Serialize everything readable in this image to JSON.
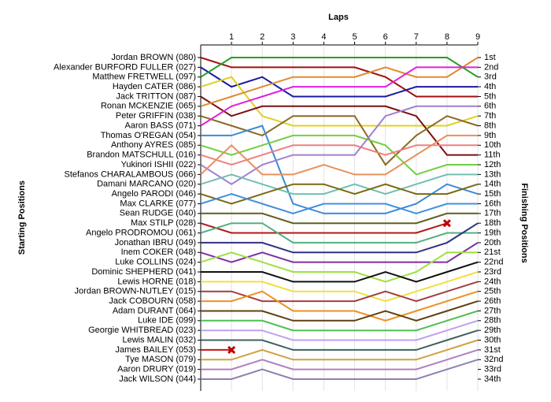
{
  "chart_data": {
    "type": "line",
    "x_label": "Laps",
    "y_label": "Starting Positions",
    "y2_label": "Finishing Positions",
    "x": [
      0,
      1,
      2,
      3,
      4,
      5,
      6,
      7,
      8,
      9
    ],
    "xlim": [
      0,
      9
    ],
    "xticks": [
      1,
      2,
      3,
      4,
      5,
      6,
      7,
      8,
      9
    ],
    "ylim": [
      1,
      34
    ],
    "y2lim": [
      1,
      34
    ],
    "y2ticks": [
      {
        "value": 1,
        "label": "1st"
      },
      {
        "value": 2,
        "label": "2nd"
      },
      {
        "value": 3,
        "label": "3rd"
      },
      {
        "value": 4,
        "label": "4th"
      },
      {
        "value": 5,
        "label": "5th"
      },
      {
        "value": 6,
        "label": "6th"
      },
      {
        "value": 7,
        "label": "7th"
      },
      {
        "value": 8,
        "label": "8th"
      },
      {
        "value": 9,
        "label": "9th"
      },
      {
        "value": 10,
        "label": "10th"
      },
      {
        "value": 11,
        "label": "11th"
      },
      {
        "value": 12,
        "label": "12th"
      },
      {
        "value": 13,
        "label": "13th"
      },
      {
        "value": 14,
        "label": "14th"
      },
      {
        "value": 15,
        "label": "15th"
      },
      {
        "value": 16,
        "label": "16th"
      },
      {
        "value": 17,
        "label": "17th"
      },
      {
        "value": 18,
        "label": "18th"
      },
      {
        "value": 19,
        "label": "19th"
      },
      {
        "value": 20,
        "label": "20th"
      },
      {
        "value": 21,
        "label": "21st"
      },
      {
        "value": 22,
        "label": "22nd"
      },
      {
        "value": 23,
        "label": "23rd"
      },
      {
        "value": 24,
        "label": "24th"
      },
      {
        "value": 25,
        "label": "25th"
      },
      {
        "value": 26,
        "label": "26th"
      },
      {
        "value": 27,
        "label": "27th"
      },
      {
        "value": 28,
        "label": "28th"
      },
      {
        "value": 29,
        "label": "29th"
      },
      {
        "value": 30,
        "label": "30th"
      },
      {
        "value": 31,
        "label": "31st"
      },
      {
        "value": 32,
        "label": "32nd"
      },
      {
        "value": 33,
        "label": "33rd"
      },
      {
        "value": 34,
        "label": "34th"
      }
    ],
    "grid": true,
    "series": [
      {
        "name": "Jordan BROWN (080)",
        "color": "#a01010",
        "values": [
          1,
          2,
          2,
          2,
          2,
          2,
          3,
          5,
          5,
          5
        ]
      },
      {
        "name": "Alexander BURFORD FULLER (027)",
        "color": "#1a1aa0",
        "values": [
          2,
          4,
          3,
          5,
          5,
          5,
          5,
          4,
          4,
          4
        ]
      },
      {
        "name": "Matthew FRETWELL (097)",
        "color": "#22a022",
        "values": [
          3,
          1,
          1,
          1,
          1,
          1,
          1,
          1,
          1,
          3
        ]
      },
      {
        "name": "Hayden CATER (086)",
        "color": "#e0d020",
        "values": [
          4,
          3,
          7,
          8,
          8,
          8,
          8,
          8,
          8,
          7
        ]
      },
      {
        "name": "Jack TRITTON (087)",
        "color": "#7a1010",
        "values": [
          5,
          7,
          6,
          6,
          6,
          6,
          6,
          7,
          11,
          11
        ]
      },
      {
        "name": "Ronan MCKENZIE (065)",
        "color": "#e08a30",
        "values": [
          6,
          5,
          4,
          3,
          3,
          3,
          2,
          3,
          3,
          1
        ]
      },
      {
        "name": "Peter GRIFFIN (038)",
        "color": "#8a6a20",
        "values": [
          7,
          8,
          9,
          7,
          7,
          7,
          12,
          9,
          7,
          8
        ]
      },
      {
        "name": "Aaron BASS (071)",
        "color": "#e020e0",
        "values": [
          8,
          6,
          5,
          4,
          4,
          4,
          4,
          2,
          2,
          2
        ]
      },
      {
        "name": "Thomas O'REGAN (054)",
        "color": "#3a8ad8",
        "values": [
          9,
          9,
          8,
          16,
          17,
          17,
          17,
          16,
          14,
          15
        ]
      },
      {
        "name": "Anthony AYRES (085)",
        "color": "#70d040",
        "values": [
          10,
          11,
          10,
          9,
          9,
          9,
          10,
          13,
          12,
          12
        ]
      },
      {
        "name": "Brandon MATSCHULL (016)",
        "color": "#f08080",
        "values": [
          11,
          12,
          11,
          10,
          10,
          10,
          11,
          10,
          10,
          10
        ]
      },
      {
        "name": "Yukinori ISHII (022)",
        "color": "#a080d0",
        "values": [
          12,
          14,
          12,
          11,
          11,
          11,
          7,
          6,
          6,
          6
        ]
      },
      {
        "name": "Stefanos CHARALAMBOUS (066)",
        "color": "#e89060",
        "values": [
          13,
          10,
          13,
          13,
          12,
          13,
          13,
          11,
          9,
          9
        ]
      },
      {
        "name": "Damani MARCANO (020)",
        "color": "#70c0b0",
        "values": [
          14,
          13,
          14,
          15,
          15,
          14,
          15,
          14,
          13,
          13
        ]
      },
      {
        "name": "Angelo PARODI (046)",
        "color": "#7a6a10",
        "values": [
          15,
          16,
          15,
          14,
          14,
          15,
          14,
          15,
          15,
          14
        ]
      },
      {
        "name": "Max CLARKE (077)",
        "color": "#4090e0",
        "values": [
          16,
          15,
          16,
          17,
          16,
          16,
          16,
          17,
          16,
          16
        ]
      },
      {
        "name": "Sean RUDGE (040)",
        "color": "#606020",
        "values": [
          17,
          17,
          17,
          18,
          18,
          18,
          18,
          18,
          17,
          17
        ]
      },
      {
        "name": "Max STILP (028)",
        "color": "#b01818",
        "retired": true,
        "values": [
          18,
          19,
          19,
          19,
          19,
          19,
          19,
          19,
          18,
          null
        ]
      },
      {
        "name": "Angelo PRODROMOU (061)",
        "color": "#50b080",
        "values": [
          19,
          18,
          18,
          20,
          20,
          20,
          20,
          20,
          19,
          19
        ]
      },
      {
        "name": "Jonathan IBRU (049)",
        "color": "#303080",
        "values": [
          20,
          20,
          20,
          21,
          21,
          21,
          21,
          21,
          20,
          18
        ]
      },
      {
        "name": "Inem COKER (048)",
        "color": "#8030a0",
        "values": [
          21,
          22,
          21,
          22,
          22,
          22,
          22,
          22,
          22,
          20
        ]
      },
      {
        "name": "Luke COLLINS (024)",
        "color": "#a0e040",
        "values": [
          22,
          21,
          22,
          23,
          23,
          23,
          24,
          23,
          21,
          21
        ]
      },
      {
        "name": "Dominic SHEPHERD (041)",
        "color": "#101010",
        "values": [
          23,
          23,
          23,
          24,
          24,
          24,
          23,
          24,
          23,
          22
        ]
      },
      {
        "name": "Lewis HORNE (018)",
        "color": "#f0e040",
        "values": [
          24,
          24,
          24,
          25,
          25,
          25,
          26,
          25,
          24,
          23
        ]
      },
      {
        "name": "Jordan BROWN-NUTLEY (015)",
        "color": "#a04040",
        "values": [
          25,
          25,
          26,
          26,
          26,
          26,
          25,
          26,
          25,
          24
        ]
      },
      {
        "name": "Jack COBOURN (058)",
        "color": "#f09020",
        "values": [
          26,
          26,
          25,
          27,
          27,
          27,
          28,
          27,
          26,
          25
        ]
      },
      {
        "name": "Adam DURANT (064)",
        "color": "#604010",
        "values": [
          27,
          27,
          27,
          28,
          28,
          28,
          27,
          28,
          27,
          26
        ]
      },
      {
        "name": "Luke IDE (099)",
        "color": "#50c050",
        "values": [
          28,
          28,
          28,
          29,
          29,
          29,
          29,
          29,
          28,
          27
        ]
      },
      {
        "name": "Georgie WHITBREAD (023)",
        "color": "#c0a0f0",
        "values": [
          29,
          29,
          29,
          30,
          30,
          30,
          30,
          30,
          29,
          28
        ]
      },
      {
        "name": "Lewis MALIN (032)",
        "color": "#406060",
        "values": [
          30,
          30,
          30,
          31,
          31,
          31,
          31,
          31,
          30,
          29
        ]
      },
      {
        "name": "James BAILEY (053)",
        "color": "#cc1111",
        "retired": true,
        "values": [
          31,
          31,
          null,
          null,
          null,
          null,
          null,
          null,
          null,
          null
        ]
      },
      {
        "name": "Tye MASON (079)",
        "color": "#d0a040",
        "values": [
          32,
          32,
          31,
          32,
          32,
          32,
          32,
          32,
          31,
          30
        ]
      },
      {
        "name": "Aaron DRURY (019)",
        "color": "#b080c0",
        "values": [
          33,
          33,
          32,
          33,
          33,
          33,
          33,
          33,
          32,
          31
        ]
      },
      {
        "name": "Jack WILSON (044)",
        "color": "#9080b0",
        "values": [
          34,
          34,
          33,
          34,
          34,
          34,
          34,
          34,
          33,
          32
        ]
      }
    ]
  }
}
